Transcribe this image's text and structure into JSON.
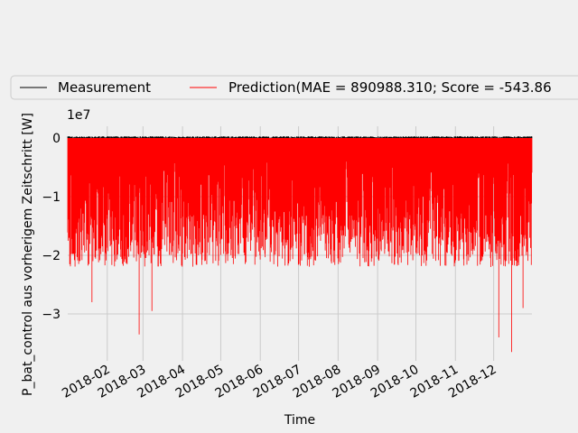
{
  "chart_data": {
    "type": "line",
    "title": "",
    "xlabel": "Time",
    "ylabel": "P_bat_control aus vorherigem Zeitschritt [W]",
    "y_multiplier_label": "1e7",
    "x_range": [
      "2018-01-01",
      "2018-12-31"
    ],
    "ylim": [
      -3.8,
      0.2
    ],
    "y_ticks": [
      0,
      -1,
      -2,
      -3
    ],
    "y_tick_labels": [
      "0",
      "−1",
      "−2",
      "−3"
    ],
    "x_ticks": [
      "2018-02-01",
      "2018-03-01",
      "2018-04-01",
      "2018-05-01",
      "2018-06-01",
      "2018-07-01",
      "2018-08-01",
      "2018-09-01",
      "2018-10-01",
      "2018-11-01",
      "2018-12-01"
    ],
    "x_tick_labels": [
      "2018-02",
      "2018-03",
      "2018-04",
      "2018-05",
      "2018-06",
      "2018-07",
      "2018-08",
      "2018-09",
      "2018-10",
      "2018-11",
      "2018-12"
    ],
    "grid": true,
    "legend_position": "top",
    "series": [
      {
        "name": "Measurement",
        "color": "#000000",
        "approximate_range": [
          0,
          0.03
        ]
      },
      {
        "name": "Prediction(MAE = 890988.310; Score = -543.86",
        "color": "#ff0000",
        "approximate_range": [
          -3.7,
          0
        ],
        "notable_minima": [
          {
            "x": "2018-01-20",
            "y": -2.8
          },
          {
            "x": "2018-02-26",
            "y": -3.35
          },
          {
            "x": "2018-03-08",
            "y": -2.95
          },
          {
            "x": "2018-12-05",
            "y": -3.4
          },
          {
            "x": "2018-12-15",
            "y": -3.65
          },
          {
            "x": "2018-12-24",
            "y": -2.9
          }
        ]
      }
    ]
  }
}
